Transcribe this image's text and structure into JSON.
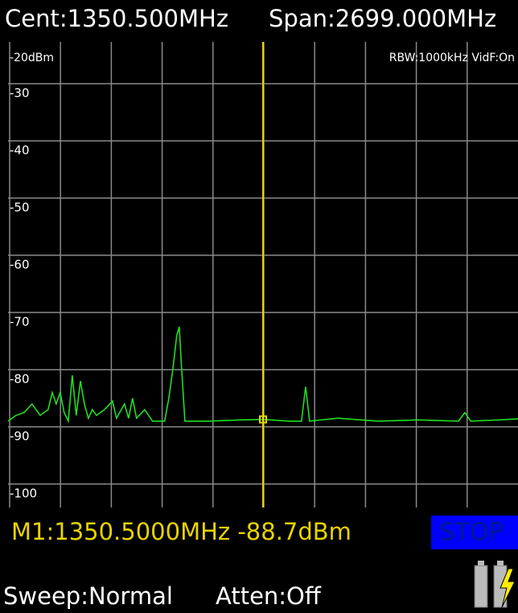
{
  "header": {
    "center": "Cent:1350.500MHz",
    "span": "Span:2699.000MHz"
  },
  "chart_data": {
    "type": "line",
    "ref_label": "-20dBm",
    "settings_label": "RBW:1000kHz VidF:On",
    "x": [
      1,
      43,
      86,
      128,
      171,
      213,
      235,
      256,
      277,
      298,
      320,
      341,
      362,
      384,
      405,
      426,
      447,
      469,
      511,
      554,
      575,
      617,
      639,
      660,
      681,
      724,
      766,
      830,
      852,
      873,
      894,
      907,
      920,
      937,
      1064,
      1235,
      1350.5,
      1491,
      1554,
      1576,
      1597,
      1746,
      1959,
      2172,
      2385,
      2419,
      2449,
      2598,
      2700
    ],
    "series": [
      {
        "color": "#22dd22",
        "values": [
          -89,
          -88,
          -87.5,
          -86,
          -88,
          -87,
          -84,
          -86,
          -84,
          -87.5,
          -89,
          -81,
          -88,
          -82,
          -86,
          -88.5,
          -87,
          -88,
          -87,
          -85.5,
          -88.5,
          -86,
          -88.5,
          -85,
          -88.5,
          -87,
          -89,
          -89,
          -85,
          -80,
          -74,
          -72.5,
          -80,
          -89,
          -89,
          -88.8,
          -88.7,
          -89,
          -89,
          -83,
          -89,
          -88.5,
          -89,
          -88.8,
          -89,
          -87.5,
          -89,
          -88.8,
          -88.6
        ]
      }
    ],
    "xlim": [
      1,
      2700
    ],
    "ylim": [
      -22.7,
      -104.1
    ],
    "yticks": [
      -30,
      -40,
      -50,
      -60,
      -70,
      -80,
      -90,
      -100
    ],
    "x_divisions": 10,
    "grid": true,
    "marker": {
      "label": "M1:1350.5000MHz -88.7dBm",
      "x": 1350.5,
      "value": -88.7,
      "color": "#e8d400"
    }
  },
  "footer": {
    "status": "STOP",
    "sweep": "Sweep:Normal",
    "atten": "Atten:Off"
  }
}
